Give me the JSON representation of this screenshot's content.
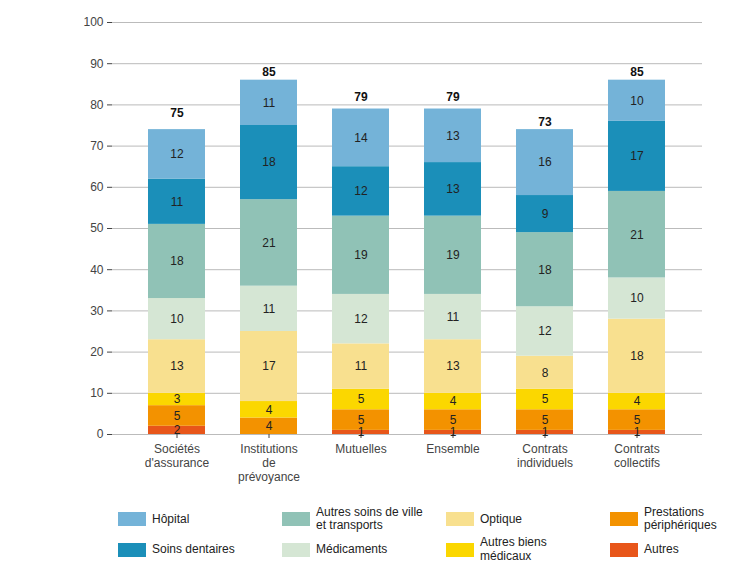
{
  "chart_data": {
    "type": "bar",
    "stacked": true,
    "data_labels": true,
    "grid": true,
    "legend": "bottom",
    "categories": [
      "Sociétés\nd'assurance",
      "Institutions\nde\nprévoyance",
      "Mutuelles",
      "Ensemble",
      "Contrats\nindividuels",
      "Contrats\ncollectifs"
    ],
    "totals": [
      75,
      85,
      79,
      79,
      73,
      85
    ],
    "ylim": [
      0,
      100
    ],
    "yticks": [
      0,
      10,
      20,
      30,
      40,
      50,
      60,
      70,
      80,
      90,
      100
    ],
    "series": [
      {
        "name": "Hôpital",
        "color": "#74b3d8",
        "values": [
          12,
          11,
          14,
          13,
          16,
          10
        ]
      },
      {
        "name": "Soins dentaires",
        "color": "#1b8fb9",
        "values": [
          11,
          18,
          12,
          13,
          9,
          17
        ]
      },
      {
        "name": "Autres soins de ville\net transports",
        "color": "#90c2b6",
        "values": [
          18,
          21,
          19,
          19,
          18,
          21
        ]
      },
      {
        "name": "Médicaments",
        "color": "#d5e6d4",
        "values": [
          10,
          11,
          12,
          11,
          12,
          10
        ]
      },
      {
        "name": "Optique",
        "color": "#f8e08f",
        "values": [
          13,
          17,
          11,
          13,
          8,
          18
        ]
      },
      {
        "name": "Autres biens médicaux",
        "color": "#fbd700",
        "values": [
          3,
          4,
          5,
          4,
          5,
          4
        ]
      },
      {
        "name": "Prestations périphériques",
        "color": "#f39200",
        "values": [
          5,
          4,
          5,
          5,
          5,
          5
        ]
      },
      {
        "name": "Autres",
        "color": "#e8561a",
        "values": [
          2,
          null,
          1,
          1,
          1,
          1
        ]
      }
    ]
  }
}
